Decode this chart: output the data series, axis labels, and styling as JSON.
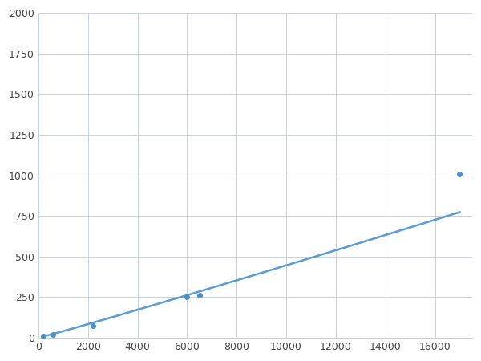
{
  "x": [
    200,
    600,
    2200,
    6000,
    6500,
    17000
  ],
  "y": [
    10,
    20,
    75,
    250,
    260,
    1010
  ],
  "line_color": "#5b9bd5",
  "marker_color": "#4a90c4",
  "marker_size": 5,
  "xlim": [
    0,
    17500
  ],
  "ylim": [
    0,
    2000
  ],
  "xticks": [
    0,
    2000,
    4000,
    6000,
    8000,
    10000,
    12000,
    14000,
    16000
  ],
  "yticks": [
    0,
    250,
    500,
    750,
    1000,
    1250,
    1500,
    1750,
    2000
  ],
  "grid_color": "#c8d0d8",
  "background_color": "#ffffff",
  "line_width": 1.8
}
